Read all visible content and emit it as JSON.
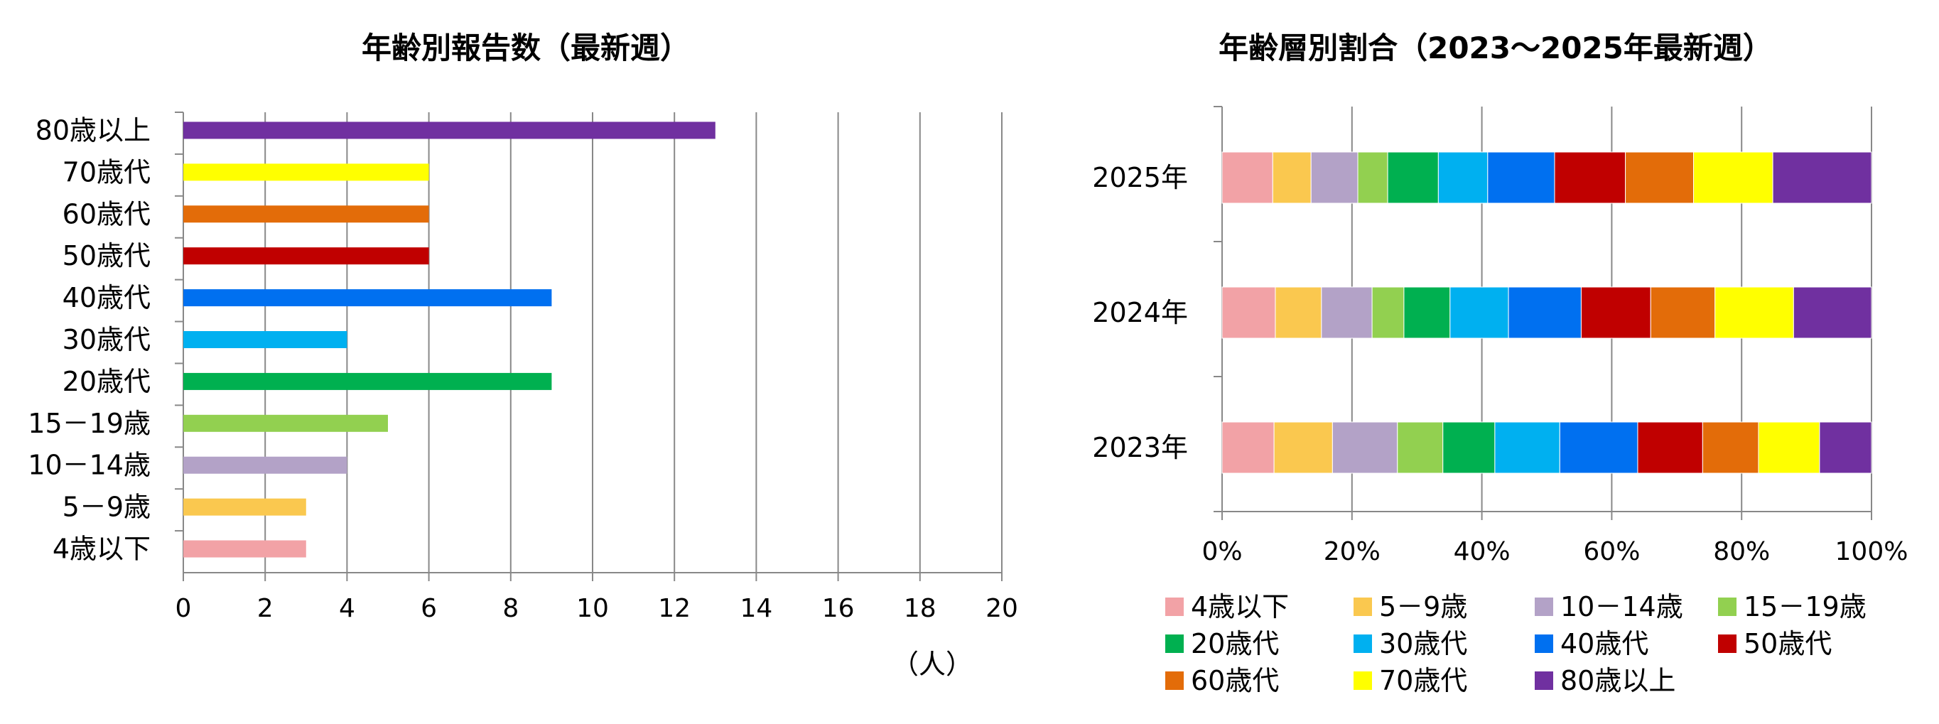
{
  "chart_data": [
    {
      "type": "bar",
      "orientation": "horizontal",
      "title": "年齢別報告数（最新週）",
      "xlabel": "（人）",
      "xlim": [
        0,
        20
      ],
      "xticks": [
        "0",
        "2",
        "4",
        "6",
        "8",
        "10",
        "12",
        "14",
        "16",
        "18",
        "20"
      ],
      "grid": true,
      "categories": [
        "80歳以上",
        "70歳代",
        "60歳代",
        "50歳代",
        "40歳代",
        "30歳代",
        "20歳代",
        "15－19歳",
        "10－14歳",
        "5－9歳",
        "4歳以下"
      ],
      "values": [
        13,
        6,
        6,
        6,
        9,
        4,
        9,
        5,
        4,
        3,
        3
      ],
      "colors": [
        "#7030A0",
        "#FFFF00",
        "#E36C09",
        "#C00000",
        "#0070F0",
        "#00B0F0",
        "#00B050",
        "#92D050",
        "#B3A2C7",
        "#FAC84F",
        "#F2A2A6"
      ]
    },
    {
      "type": "bar",
      "orientation": "horizontal",
      "stacked": "percent",
      "title": "年齢層別割合（2023～2025年最新週）",
      "xlim": [
        0,
        100
      ],
      "xticks": [
        "0%",
        "20%",
        "40%",
        "60%",
        "80%",
        "100%"
      ],
      "grid": true,
      "legend_position": "bottom",
      "categories": [
        "2025年",
        "2024年",
        "2023年"
      ],
      "series": [
        {
          "name": "4歳以下",
          "color": "#F2A2A6",
          "values": [
            7.8,
            8.2,
            8.0
          ]
        },
        {
          "name": "5－9歳",
          "color": "#FAC84F",
          "values": [
            5.9,
            7.1,
            9.0
          ]
        },
        {
          "name": "10－14歳",
          "color": "#B3A2C7",
          "values": [
            7.2,
            7.8,
            10.0
          ]
        },
        {
          "name": "15－19歳",
          "color": "#92D050",
          "values": [
            4.6,
            4.9,
            7.0
          ]
        },
        {
          "name": "20歳代",
          "color": "#00B050",
          "values": [
            7.8,
            7.1,
            8.0
          ]
        },
        {
          "name": "30歳代",
          "color": "#00B0F0",
          "values": [
            7.6,
            9.0,
            10.0
          ]
        },
        {
          "name": "40歳代",
          "color": "#0070F0",
          "values": [
            10.3,
            11.2,
            12.0
          ]
        },
        {
          "name": "50歳代",
          "color": "#C00000",
          "values": [
            10.9,
            10.7,
            10.0
          ]
        },
        {
          "name": "60歳代",
          "color": "#E36C09",
          "values": [
            10.5,
            9.9,
            8.6
          ]
        },
        {
          "name": "70歳代",
          "color": "#FFFF00",
          "values": [
            12.2,
            12.1,
            9.4
          ]
        },
        {
          "name": "80歳以上",
          "color": "#7030A0",
          "values": [
            15.2,
            12.0,
            8.0
          ]
        }
      ]
    }
  ]
}
